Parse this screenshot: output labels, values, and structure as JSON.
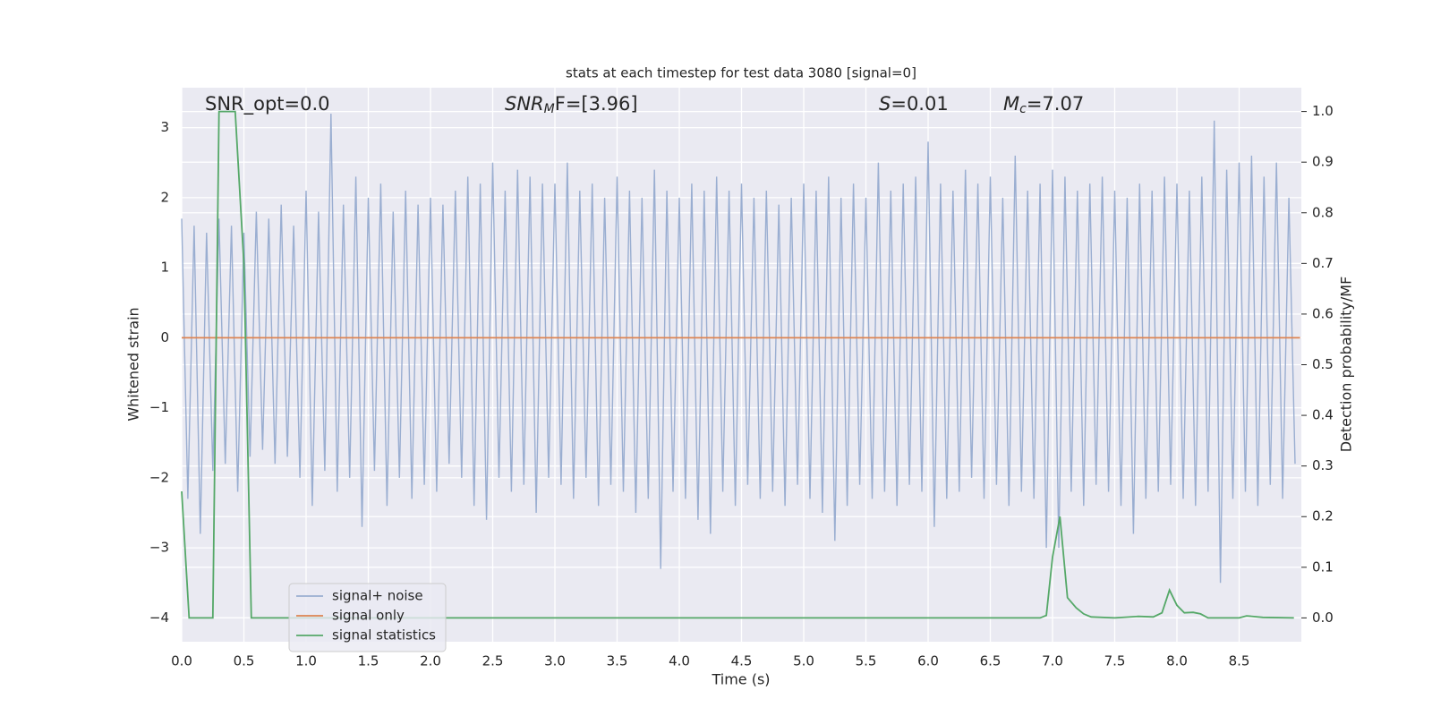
{
  "chart_data": {
    "type": "line",
    "title": "stats at each timestep for test data 3080 [signal=0]",
    "x_label": "Time (s)",
    "y_label": "Whitened strain",
    "y2_label": "Detection probability/MF",
    "annotations": [
      {
        "base": "SNR_opt=0.0"
      },
      {
        "base": "SNR",
        "sub": "M",
        "after": "F=[3.96]"
      },
      {
        "base": "S",
        "after": "=0.01"
      },
      {
        "base": "M",
        "sub": "c",
        "after": "=7.07"
      }
    ],
    "xlim": [
      0,
      9
    ],
    "ylim": [
      -4.34,
      3.57
    ],
    "y2lim": [
      -0.047,
      1.047
    ],
    "xticks": [
      {
        "value": 0,
        "label": "0.0"
      },
      0.5,
      {
        "value": 1,
        "label": "1.0"
      },
      1.5,
      {
        "value": 2,
        "label": "2.0"
      },
      2.5,
      {
        "value": 3,
        "label": "3.0"
      },
      3.5,
      {
        "value": 4,
        "label": "4.0"
      },
      4.5,
      {
        "value": 5,
        "label": "5.0"
      },
      5.5,
      {
        "value": 6,
        "label": "6.0"
      },
      6.5,
      {
        "value": 7,
        "label": "7.0"
      },
      7.5,
      {
        "value": 8,
        "label": "8.0"
      },
      8.5
    ],
    "yticks": [
      {
        "value": -4,
        "label": "−4"
      },
      {
        "value": -3,
        "label": "−3"
      },
      {
        "value": -2,
        "label": "−2"
      },
      {
        "value": -1,
        "label": "−1"
      },
      0,
      1,
      2,
      3
    ],
    "y2ticks": [
      {
        "value": 0,
        "label": "0.0"
      },
      0.1,
      0.2,
      0.3,
      0.4,
      0.5,
      0.6,
      0.7,
      0.8,
      0.9,
      {
        "value": 1,
        "label": "1.0"
      }
    ],
    "grid": true,
    "legend": "lower left",
    "series": [
      {
        "name": "signal+ noise",
        "color": "#9aaed1",
        "x": [
          0,
          0.05,
          0.1,
          0.15,
          0.2,
          0.25,
          0.3,
          0.35,
          0.4,
          0.45,
          0.5,
          0.55,
          0.6,
          0.65,
          0.7,
          0.75,
          0.8,
          0.85,
          0.9,
          0.95,
          1,
          1.05,
          1.1,
          1.15,
          1.2,
          1.25,
          1.3,
          1.35,
          1.4,
          1.45,
          1.5,
          1.55,
          1.6,
          1.65,
          1.7,
          1.75,
          1.8,
          1.85,
          1.9,
          1.95,
          2,
          2.05,
          2.1,
          2.15,
          2.2,
          2.25,
          2.3,
          2.35,
          2.4,
          2.45,
          2.5,
          2.55,
          2.6,
          2.65,
          2.7,
          2.75,
          2.8,
          2.85,
          2.9,
          2.95,
          3,
          3.05,
          3.1,
          3.15,
          3.2,
          3.25,
          3.3,
          3.35,
          3.4,
          3.45,
          3.5,
          3.55,
          3.6,
          3.65,
          3.7,
          3.75,
          3.8,
          3.85,
          3.9,
          3.95,
          4,
          4.05,
          4.1,
          4.15,
          4.2,
          4.25,
          4.3,
          4.35,
          4.4,
          4.45,
          4.5,
          4.55,
          4.6,
          4.65,
          4.7,
          4.75,
          4.8,
          4.85,
          4.9,
          4.95,
          5,
          5.05,
          5.1,
          5.15,
          5.2,
          5.25,
          5.3,
          5.35,
          5.4,
          5.45,
          5.5,
          5.55,
          5.6,
          5.65,
          5.7,
          5.75,
          5.8,
          5.85,
          5.9,
          5.95,
          6,
          6.05,
          6.1,
          6.15,
          6.2,
          6.25,
          6.3,
          6.35,
          6.4,
          6.45,
          6.5,
          6.55,
          6.6,
          6.65,
          6.7,
          6.75,
          6.8,
          6.85,
          6.9,
          6.95,
          7,
          7.05,
          7.1,
          7.15,
          7.2,
          7.25,
          7.3,
          7.35,
          7.4,
          7.45,
          7.5,
          7.55,
          7.6,
          7.65,
          7.7,
          7.75,
          7.8,
          7.85,
          7.9,
          7.95,
          8,
          8.05,
          8.1,
          8.15,
          8.2,
          8.25,
          8.3,
          8.35,
          8.4,
          8.45,
          8.5,
          8.55,
          8.6,
          8.65,
          8.7,
          8.75,
          8.8,
          8.85,
          8.9,
          8.95
        ],
        "values": [
          1.7,
          -2.3,
          1.6,
          -2.8,
          1.5,
          -1.9,
          1.7,
          -1.8,
          1.6,
          -2.2,
          1.5,
          -1.7,
          1.8,
          -1.6,
          1.7,
          -1.8,
          1.9,
          -1.7,
          1.6,
          -2.0,
          2.1,
          -2.4,
          1.8,
          -1.9,
          3.2,
          -2.2,
          1.9,
          -2.0,
          2.3,
          -2.7,
          2.0,
          -1.9,
          2.2,
          -2.4,
          1.8,
          -2.0,
          2.1,
          -2.3,
          1.9,
          -2.1,
          2.0,
          -2.2,
          1.9,
          -1.8,
          2.1,
          -2.0,
          2.3,
          -2.4,
          2.2,
          -2.6,
          2.5,
          -2.0,
          2.1,
          -2.2,
          2.4,
          -2.1,
          2.3,
          -2.5,
          2.2,
          -2.0,
          2.2,
          -2.1,
          2.5,
          -2.3,
          2.1,
          -2.0,
          2.2,
          -2.4,
          2.0,
          -2.1,
          2.3,
          -2.2,
          2.1,
          -2.5,
          2.0,
          -2.3,
          2.4,
          -3.3,
          2.1,
          -2.2,
          2.0,
          -2.3,
          2.2,
          -2.6,
          2.1,
          -2.8,
          2.3,
          -2.2,
          2.1,
          -2.4,
          2.2,
          -2.1,
          2.0,
          -2.3,
          2.1,
          -2.2,
          1.9,
          -2.4,
          2.0,
          -2.1,
          2.2,
          -2.3,
          2.1,
          -2.5,
          2.3,
          -2.9,
          2.0,
          -2.4,
          2.2,
          -2.1,
          2.0,
          -2.3,
          2.5,
          -2.2,
          2.1,
          -2.4,
          2.2,
          -2.1,
          2.3,
          -2.2,
          2.8,
          -2.7,
          2.2,
          -2.3,
          2.1,
          -2.2,
          2.4,
          -2.0,
          2.2,
          -2.3,
          2.3,
          -2.1,
          2.0,
          -2.4,
          2.6,
          -2.2,
          2.1,
          -2.3,
          2.2,
          -3.0,
          2.4,
          -3.0,
          2.3,
          -2.2,
          2.1,
          -2.4,
          2.2,
          -2.1,
          2.3,
          -2.2,
          2.1,
          -2.4,
          2.0,
          -2.8,
          2.2,
          -2.3,
          2.1,
          -2.2,
          2.3,
          -2.1,
          2.2,
          -2.3,
          2.1,
          -2.4,
          2.3,
          -2.2,
          3.1,
          -3.5,
          2.4,
          -2.3,
          2.5,
          -2.2,
          2.6,
          -2.4,
          2.3,
          -2.1,
          2.5,
          -2.3,
          2.0,
          -1.8
        ]
      },
      {
        "name": "signal only",
        "color": "#dd8452",
        "x": [
          0,
          8.99
        ],
        "values": [
          0,
          0
        ]
      },
      {
        "name": "signal statistics",
        "color": "#55a868",
        "axis": "y2",
        "x": [
          0,
          0.06,
          0.25,
          0.3,
          0.43,
          0.5,
          0.56,
          6.9,
          6.95,
          7.0,
          7.06,
          7.12,
          7.19,
          7.25,
          7.31,
          7.5,
          7.69,
          7.81,
          7.88,
          7.94,
          8.0,
          8.06,
          8.13,
          8.19,
          8.25,
          8.5,
          8.56,
          8.69,
          8.94
        ],
        "values": [
          0.25,
          0,
          0,
          1.0,
          1.0,
          0.7,
          0,
          0,
          0.005,
          0.12,
          0.2,
          0.04,
          0.02,
          0.008,
          0.002,
          0,
          0.003,
          0.002,
          0.01,
          0.055,
          0.025,
          0.01,
          0.011,
          0.008,
          0,
          0,
          0.004,
          0.001,
          0
        ]
      }
    ]
  }
}
